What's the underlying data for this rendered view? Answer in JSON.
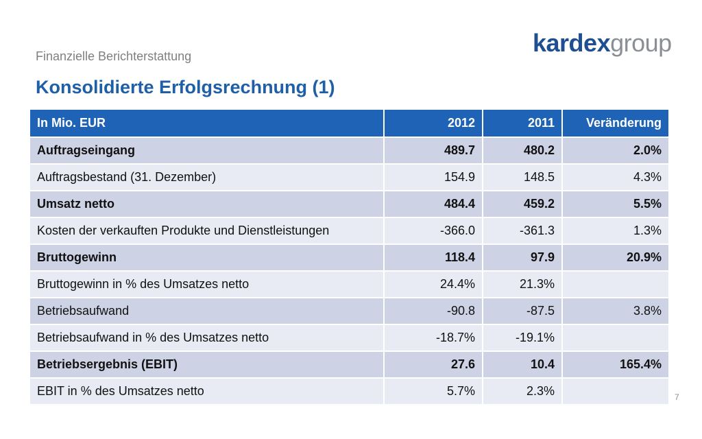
{
  "header": {
    "subtitle": "Finanzielle Berichterstattung",
    "title": "Konsolidierte Erfolgsrechnung (1)",
    "logo": {
      "brand": "kardex",
      "suffix": "group"
    }
  },
  "table": {
    "columns": [
      "In Mio. EUR",
      "2012",
      "2011",
      "Veränderung"
    ],
    "rows": [
      {
        "label": "Auftragseingang",
        "y2012": "489.7",
        "y2011": "480.2",
        "change": "2.0%",
        "bold": true
      },
      {
        "label": "Auftragsbestand (31. Dezember)",
        "y2012": "154.9",
        "y2011": "148.5",
        "change": "4.3%",
        "bold": false
      },
      {
        "label": "Umsatz netto",
        "y2012": "484.4",
        "y2011": "459.2",
        "change": "5.5%",
        "bold": true
      },
      {
        "label": "Kosten der verkauften Produkte und Dienstleistungen",
        "y2012": "-366.0",
        "y2011": "-361.3",
        "change": "1.3%",
        "bold": false
      },
      {
        "label": "Bruttogewinn",
        "y2012": "118.4",
        "y2011": "97.9",
        "change": "20.9%",
        "bold": true
      },
      {
        "label": "Bruttogewinn in % des Umsatzes netto",
        "y2012": "24.4%",
        "y2011": "21.3%",
        "change": "",
        "bold": false
      },
      {
        "label": "Betriebsaufwand",
        "y2012": "-90.8",
        "y2011": "-87.5",
        "change": "3.8%",
        "bold": false
      },
      {
        "label": "Betriebsaufwand in % des Umsatzes netto",
        "y2012": "-18.7%",
        "y2011": "-19.1%",
        "change": "",
        "bold": false
      },
      {
        "label": "Betriebsergebnis (EBIT)",
        "y2012": "27.6",
        "y2011": "10.4",
        "change": "165.4%",
        "bold": true
      },
      {
        "label": "EBIT in % des Umsatzes netto",
        "y2012": "5.7%",
        "y2011": "2.3%",
        "change": "",
        "bold": false
      }
    ]
  },
  "footer": {
    "page_number": "7"
  },
  "colors": {
    "title": "#1f5fa8",
    "header_row": "#1e63b5",
    "row_dark": "#cdd3e5",
    "row_light": "#e8ebf3",
    "logo_brand": "#1d4f91",
    "logo_suffix": "#8a8f96"
  }
}
